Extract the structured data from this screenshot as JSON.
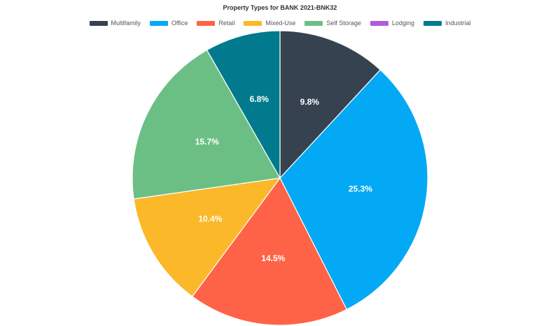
{
  "chart_data": {
    "type": "pie",
    "title": "Property Types for BANK 2021-BNK32",
    "legend_position": "top",
    "start_angle_deg": 0,
    "direction": "clockwise",
    "slices": [
      {
        "label": "Multifamily",
        "value": 9.8,
        "display": "9.8%",
        "color": "#36424f"
      },
      {
        "label": "Office",
        "value": 25.3,
        "display": "25.3%",
        "color": "#03a9f4"
      },
      {
        "label": "Retail",
        "value": 14.5,
        "display": "14.5%",
        "color": "#ff6347"
      },
      {
        "label": "Mixed-Use",
        "value": 10.4,
        "display": "10.4%",
        "color": "#fbb829"
      },
      {
        "label": "Self Storage",
        "value": 15.7,
        "display": "15.7%",
        "color": "#6cbf84"
      },
      {
        "label": "Lodging",
        "value": 0,
        "display": "",
        "color": "#b05ce0"
      },
      {
        "label": "Industrial",
        "value": 6.8,
        "display": "6.8%",
        "color": "#007a8c"
      }
    ]
  }
}
